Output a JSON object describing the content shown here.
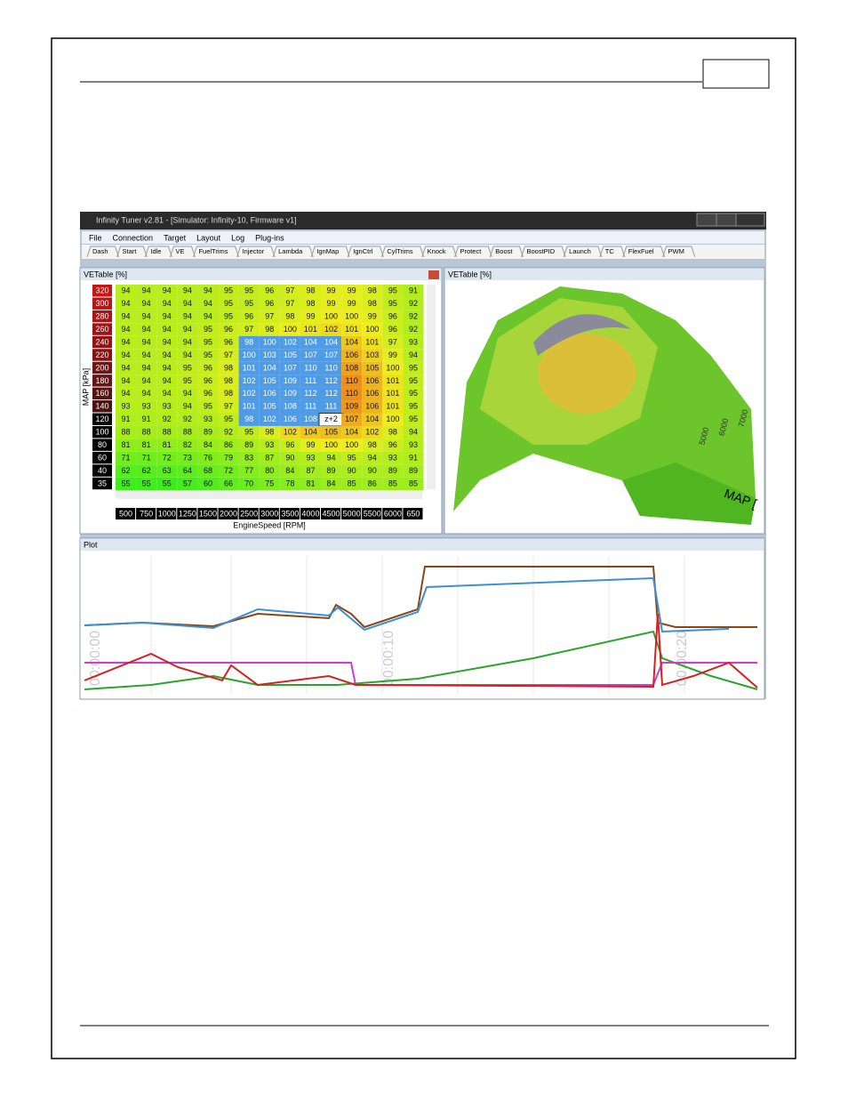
{
  "window": {
    "title": "Infinity Tuner v2.81 - [Simulator: Infinity-10, Firmware v1]",
    "menu": [
      "File",
      "Connection",
      "Target",
      "Layout",
      "Log",
      "Plug-ins"
    ],
    "tabs": [
      "Dash",
      "Start",
      "Idle",
      "VE",
      "FuelTrims",
      "Injector",
      "Lambda",
      "IgnMap",
      "IgnCtrl",
      "CylTrims",
      "Knock",
      "Protect",
      "Boost",
      "BoostPID",
      "Launch",
      "TC",
      "FlexFuel",
      "PWM"
    ]
  },
  "ve_table": {
    "title": "VETable [%]",
    "y_axis_label": "MAP [kPa]",
    "x_axis_label": "EngineSpeed [RPM]",
    "rows": [
      320,
      300,
      280,
      260,
      240,
      220,
      200,
      180,
      160,
      140,
      120,
      100,
      80,
      60,
      40,
      35
    ],
    "columns": [
      500,
      750,
      1000,
      1250,
      1500,
      2000,
      2500,
      3000,
      3500,
      4000,
      4500,
      5000,
      5500,
      6000,
      650
    ],
    "values": [
      [
        94,
        94,
        94,
        94,
        94,
        95,
        95,
        96,
        97,
        98,
        99,
        99,
        98,
        95,
        91
      ],
      [
        94,
        94,
        94,
        94,
        94,
        95,
        95,
        96,
        97,
        98,
        99,
        99,
        98,
        95,
        92
      ],
      [
        94,
        94,
        94,
        94,
        94,
        95,
        96,
        97,
        98,
        99,
        100,
        100,
        99,
        96,
        92
      ],
      [
        94,
        94,
        94,
        94,
        95,
        96,
        97,
        98,
        100,
        101,
        102,
        101,
        100,
        96,
        92
      ],
      [
        94,
        94,
        94,
        94,
        95,
        96,
        98,
        100,
        102,
        104,
        104,
        104,
        101,
        97,
        93
      ],
      [
        94,
        94,
        94,
        94,
        95,
        97,
        100,
        103,
        105,
        107,
        107,
        106,
        103,
        99,
        94
      ],
      [
        94,
        94,
        94,
        95,
        96,
        98,
        101,
        104,
        107,
        110,
        110,
        108,
        105,
        100,
        95
      ],
      [
        94,
        94,
        94,
        95,
        96,
        98,
        102,
        105,
        109,
        111,
        112,
        110,
        106,
        101,
        95
      ],
      [
        94,
        94,
        94,
        94,
        96,
        98,
        102,
        106,
        109,
        112,
        112,
        110,
        106,
        101,
        95
      ],
      [
        93,
        93,
        93,
        94,
        95,
        97,
        101,
        105,
        108,
        111,
        111,
        109,
        106,
        101,
        95
      ],
      [
        91,
        91,
        92,
        92,
        93,
        95,
        98,
        102,
        106,
        108,
        null,
        107,
        104,
        100,
        95
      ],
      [
        88,
        88,
        88,
        88,
        89,
        92,
        95,
        98,
        102,
        104,
        105,
        104,
        102,
        98,
        94
      ],
      [
        81,
        81,
        81,
        82,
        84,
        86,
        89,
        93,
        96,
        99,
        100,
        100,
        98,
        96,
        93
      ],
      [
        71,
        71,
        72,
        73,
        76,
        79,
        83,
        87,
        90,
        93,
        94,
        95,
        94,
        93,
        91
      ],
      [
        62,
        62,
        63,
        64,
        68,
        72,
        77,
        80,
        84,
        87,
        89,
        90,
        90,
        89,
        89
      ],
      [
        55,
        55,
        55,
        57,
        60,
        66,
        70,
        75,
        78,
        81,
        84,
        85,
        86,
        85,
        85
      ]
    ],
    "tooltip": "z+2"
  },
  "view_3d": {
    "title": "VETable [%]",
    "axis_label": "MAP [",
    "ticks": [
      "5000",
      "6000",
      "7000"
    ]
  },
  "plot": {
    "title": "Plot",
    "time_labels": [
      "00:00:00",
      "00:00:10",
      "00:00:20"
    ]
  }
}
